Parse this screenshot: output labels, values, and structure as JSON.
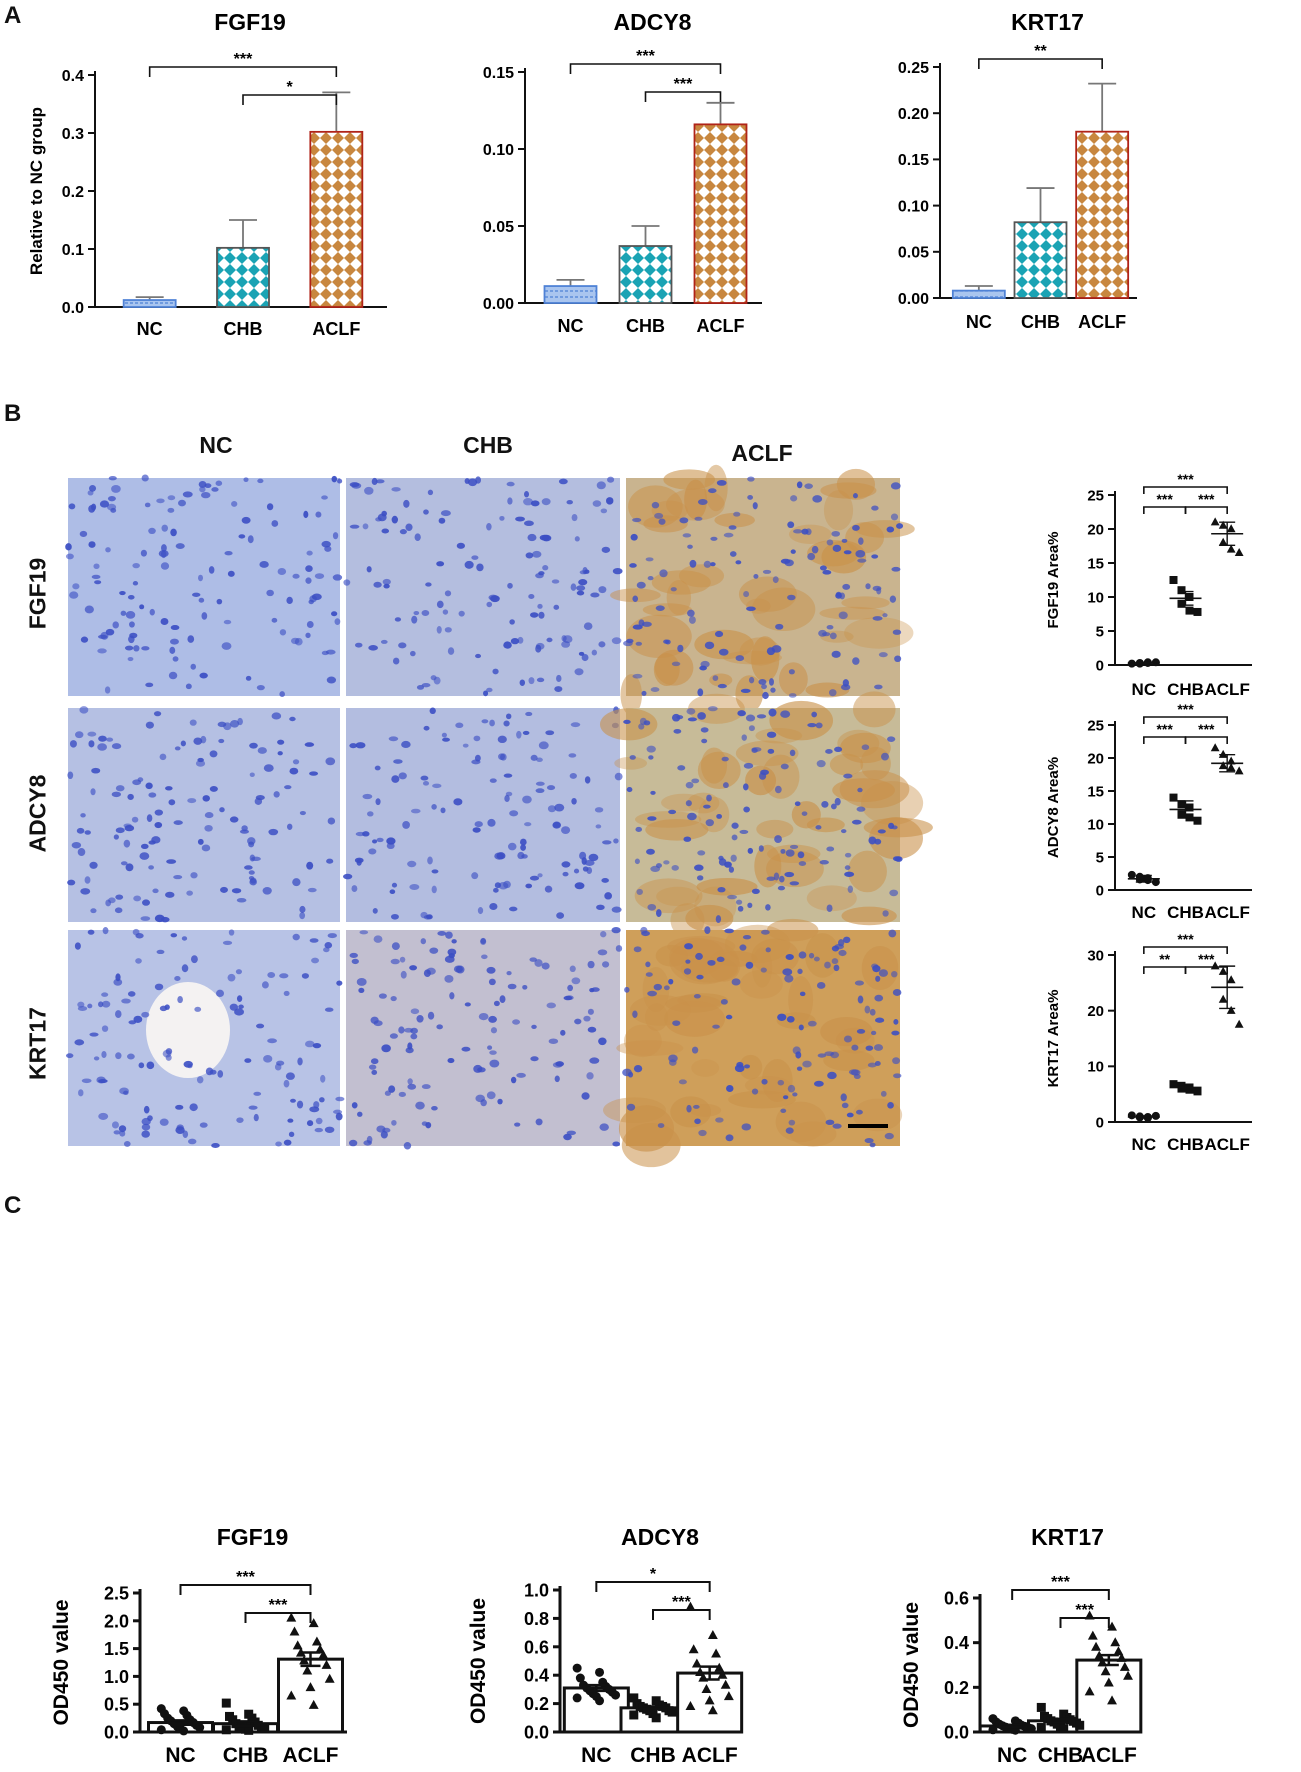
{
  "panels": {
    "a": "A",
    "b": "B",
    "c": "C"
  },
  "colors": {
    "nc_fill": "#a9c5ef",
    "nc_stroke": "#4f82d6",
    "chb_fill": "#1aa3b4",
    "chb_stroke": "#0d6f7c",
    "aclf_fill": "#c8873f",
    "aclf_stroke": "#b02318",
    "ihc_blue": "#a8b6df",
    "ihc_nucleus": "#3c4fc4",
    "ihc_brown": "#c9914a"
  },
  "ihc": {
    "columns": [
      "NC",
      "CHB",
      "ACLF"
    ],
    "rows": [
      "FGF19",
      "ADCY8",
      "KRT17"
    ]
  },
  "chart_data": [
    {
      "id": "a_fgf19",
      "type": "bar",
      "title": "FGF19",
      "ylabel": "Relative to NC group",
      "categories": [
        "NC",
        "CHB",
        "ACLF"
      ],
      "values": [
        0.012,
        0.102,
        0.302
      ],
      "errors": [
        0.005,
        0.048,
        0.068
      ],
      "ylim": [
        0,
        0.4
      ],
      "yticks": [
        "0.0",
        "0.1",
        "0.2",
        "0.3",
        "0.4"
      ],
      "significance": [
        {
          "from": 0,
          "to": 2,
          "label": "***"
        },
        {
          "from": 1,
          "to": 2,
          "label": "*"
        }
      ]
    },
    {
      "id": "a_adcy8",
      "type": "bar",
      "title": "ADCY8",
      "ylabel": "",
      "categories": [
        "NC",
        "CHB",
        "ACLF"
      ],
      "values": [
        0.011,
        0.037,
        0.116
      ],
      "errors": [
        0.004,
        0.013,
        0.014
      ],
      "ylim": [
        0,
        0.15
      ],
      "yticks": [
        "0.00",
        "0.05",
        "0.10",
        "0.15"
      ],
      "significance": [
        {
          "from": 0,
          "to": 2,
          "label": "***"
        },
        {
          "from": 1,
          "to": 2,
          "label": "***"
        }
      ]
    },
    {
      "id": "a_krt17",
      "type": "bar",
      "title": "KRT17",
      "ylabel": "",
      "categories": [
        "NC",
        "CHB",
        "ACLF"
      ],
      "values": [
        0.008,
        0.082,
        0.18
      ],
      "errors": [
        0.005,
        0.037,
        0.052
      ],
      "ylim": [
        0,
        0.25
      ],
      "yticks": [
        "0.00",
        "0.05",
        "0.10",
        "0.15",
        "0.20",
        "0.25"
      ],
      "significance": [
        {
          "from": 0,
          "to": 2,
          "label": "**"
        }
      ]
    },
    {
      "id": "b_fgf19",
      "type": "scatter",
      "title": "",
      "ylabel": "FGF19 Area%",
      "categories": [
        "NC",
        "CHB",
        "ACLF"
      ],
      "points": [
        [
          0.2,
          0.3,
          0.4,
          0.2,
          0.3,
          0.4
        ],
        [
          12.5,
          11.0,
          10.0,
          9.0,
          8.0,
          7.8
        ],
        [
          21.0,
          20.5,
          20.0,
          18.0,
          17.0,
          16.5
        ]
      ],
      "means": [
        0.3,
        9.8,
        19.3
      ],
      "errors": [
        0.1,
        1.0,
        1.7
      ],
      "markers": [
        "circle",
        "square",
        "triangle"
      ],
      "ylim": [
        0,
        25
      ],
      "yticks": [
        "0",
        "5",
        "10",
        "15",
        "20",
        "25"
      ],
      "significance": [
        {
          "from": 0,
          "to": 2,
          "label": "***"
        },
        {
          "from": 0,
          "to": 1,
          "label": "***"
        },
        {
          "from": 1,
          "to": 2,
          "label": "***"
        }
      ]
    },
    {
      "id": "b_adcy8",
      "type": "scatter",
      "title": "",
      "ylabel": "ADCY8 Area%",
      "categories": [
        "NC",
        "CHB",
        "ACLF"
      ],
      "points": [
        [
          2.3,
          2.0,
          1.8,
          1.6,
          1.5,
          1.2
        ],
        [
          14.0,
          13.0,
          12.5,
          11.5,
          11.0,
          10.5
        ],
        [
          21.5,
          20.5,
          19.5,
          18.8,
          18.5,
          18.0
        ]
      ],
      "means": [
        1.7,
        12.2,
        19.2
      ],
      "errors": [
        0.5,
        1.3,
        1.3
      ],
      "markers": [
        "circle",
        "square",
        "triangle"
      ],
      "ylim": [
        0,
        25
      ],
      "yticks": [
        "0",
        "5",
        "10",
        "15",
        "20",
        "25"
      ],
      "significance": [
        {
          "from": 0,
          "to": 2,
          "label": "***"
        },
        {
          "from": 0,
          "to": 1,
          "label": "***"
        },
        {
          "from": 1,
          "to": 2,
          "label": "***"
        }
      ]
    },
    {
      "id": "b_krt17",
      "type": "scatter",
      "title": "",
      "ylabel": "KRT17 Area%",
      "categories": [
        "NC",
        "CHB",
        "ACLF"
      ],
      "points": [
        [
          1.2,
          1.0,
          0.9,
          0.8,
          0.7,
          1.1
        ],
        [
          6.8,
          6.5,
          6.2,
          6.0,
          5.8,
          5.5
        ],
        [
          28.0,
          27.0,
          25.5,
          22.0,
          20.0,
          17.5
        ]
      ],
      "means": [
        0.9,
        6.2,
        24.2
      ],
      "errors": [
        0.2,
        0.5,
        3.8
      ],
      "markers": [
        "circle",
        "square",
        "triangle"
      ],
      "ylim": [
        0,
        30
      ],
      "yticks": [
        "0",
        "10",
        "20",
        "30"
      ],
      "significance": [
        {
          "from": 0,
          "to": 2,
          "label": "***"
        },
        {
          "from": 0,
          "to": 1,
          "label": "**"
        },
        {
          "from": 1,
          "to": 2,
          "label": "***"
        }
      ]
    },
    {
      "id": "c_fgf19",
      "type": "bar_scatter",
      "title": "FGF19",
      "ylabel": "OD450 value",
      "categories": [
        "NC",
        "CHB",
        "ACLF"
      ],
      "values": [
        0.17,
        0.15,
        1.31
      ],
      "errors": [
        0.04,
        0.04,
        0.12
      ],
      "points": [
        [
          0.42,
          0.38,
          0.33,
          0.3,
          0.25,
          0.22,
          0.2,
          0.17,
          0.15,
          0.12,
          0.1,
          0.08,
          0.06,
          0.04,
          0.02
        ],
        [
          0.52,
          0.32,
          0.28,
          0.25,
          0.22,
          0.18,
          0.15,
          0.12,
          0.1,
          0.09,
          0.08,
          0.07,
          0.05,
          0.04,
          0.03
        ],
        [
          2.05,
          1.95,
          1.8,
          1.62,
          1.55,
          1.48,
          1.42,
          1.38,
          1.28,
          1.2,
          1.1,
          0.95,
          0.8,
          0.65,
          0.48
        ]
      ],
      "markers": [
        "circle",
        "square",
        "triangle"
      ],
      "ylim": [
        0,
        2.5
      ],
      "yticks": [
        "0.0",
        "0.5",
        "1.0",
        "1.5",
        "2.0",
        "2.5"
      ],
      "significance": [
        {
          "from": 0,
          "to": 2,
          "label": "***"
        },
        {
          "from": 1,
          "to": 2,
          "label": "***"
        }
      ]
    },
    {
      "id": "c_adcy8",
      "type": "bar_scatter",
      "title": "ADCY8",
      "ylabel": "OD450 value",
      "categories": [
        "NC",
        "CHB",
        "ACLF"
      ],
      "values": [
        0.31,
        0.17,
        0.415
      ],
      "errors": [
        0.02,
        0.01,
        0.045
      ],
      "points": [
        [
          0.45,
          0.42,
          0.38,
          0.35,
          0.33,
          0.32,
          0.31,
          0.3,
          0.29,
          0.28,
          0.27,
          0.26,
          0.25,
          0.24,
          0.22
        ],
        [
          0.24,
          0.22,
          0.2,
          0.19,
          0.18,
          0.18,
          0.17,
          0.17,
          0.16,
          0.15,
          0.15,
          0.14,
          0.13,
          0.12,
          0.1
        ],
        [
          0.88,
          0.68,
          0.58,
          0.55,
          0.48,
          0.45,
          0.42,
          0.4,
          0.38,
          0.33,
          0.3,
          0.25,
          0.22,
          0.18,
          0.15
        ]
      ],
      "markers": [
        "circle",
        "square",
        "triangle"
      ],
      "ylim": [
        0,
        1.0
      ],
      "yticks": [
        "0.0",
        "0.2",
        "0.4",
        "0.6",
        "0.8",
        "1.0"
      ],
      "significance": [
        {
          "from": 0,
          "to": 2,
          "label": "*"
        },
        {
          "from": 1,
          "to": 2,
          "label": "***"
        }
      ]
    },
    {
      "id": "c_krt17",
      "type": "bar_scatter",
      "title": "KRT17",
      "ylabel": "OD450 value",
      "categories": [
        "NC",
        "CHB",
        "ACLF"
      ],
      "values": [
        0.027,
        0.05,
        0.322
      ],
      "errors": [
        0.005,
        0.008,
        0.022
      ],
      "points": [
        [
          0.06,
          0.05,
          0.045,
          0.04,
          0.035,
          0.03,
          0.028,
          0.025,
          0.022,
          0.02,
          0.018,
          0.015,
          0.012,
          0.01,
          0.008
        ],
        [
          0.11,
          0.08,
          0.07,
          0.065,
          0.06,
          0.055,
          0.05,
          0.048,
          0.045,
          0.04,
          0.035,
          0.03,
          0.025,
          0.02,
          0.015
        ],
        [
          0.52,
          0.47,
          0.43,
          0.4,
          0.38,
          0.36,
          0.34,
          0.33,
          0.31,
          0.29,
          0.27,
          0.25,
          0.22,
          0.18,
          0.14
        ]
      ],
      "markers": [
        "circle",
        "square",
        "triangle"
      ],
      "ylim": [
        0,
        0.6
      ],
      "yticks": [
        "0.0",
        "0.2",
        "0.4",
        "0.6"
      ],
      "significance": [
        {
          "from": 0,
          "to": 2,
          "label": "***"
        },
        {
          "from": 1,
          "to": 2,
          "label": "***"
        }
      ]
    }
  ]
}
